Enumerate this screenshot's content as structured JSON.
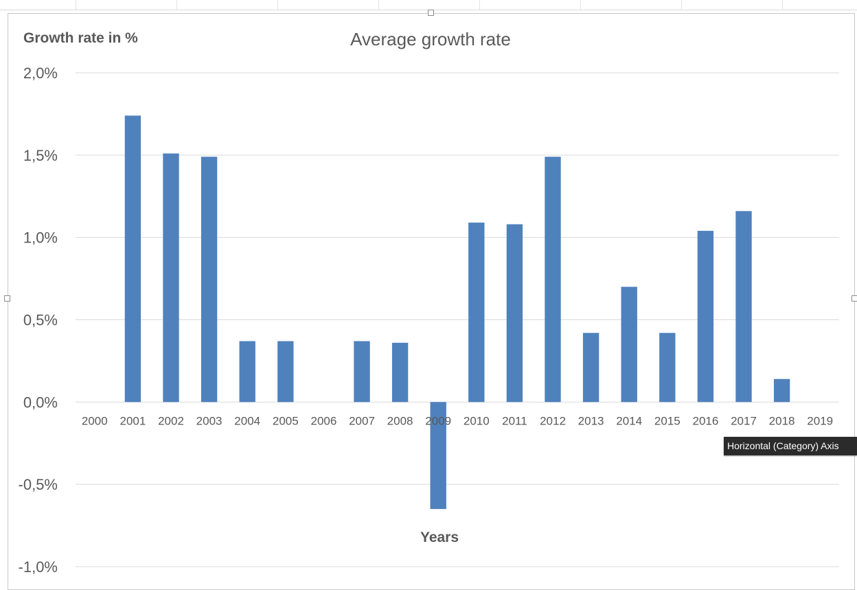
{
  "chart_data": {
    "type": "bar",
    "title": "Average growth rate",
    "ylabel": "Growth rate in %",
    "xlabel": "Years",
    "categories": [
      "2000",
      "2001",
      "2002",
      "2003",
      "2004",
      "2005",
      "2006",
      "2007",
      "2008",
      "2009",
      "2010",
      "2011",
      "2012",
      "2013",
      "2014",
      "2015",
      "2016",
      "2017",
      "2018",
      "2019"
    ],
    "values": [
      null,
      1.74,
      1.51,
      1.49,
      0.37,
      0.37,
      null,
      0.37,
      0.36,
      -0.65,
      1.09,
      1.08,
      1.49,
      0.42,
      0.7,
      0.42,
      1.04,
      1.16,
      0.14,
      null
    ],
    "ylim": [
      -1.0,
      2.0
    ],
    "yticks": [
      2.0,
      1.5,
      1.0,
      0.5,
      0.0,
      -0.5,
      -1.0
    ],
    "ytick_labels": [
      "2,0%",
      "1,5%",
      "1,0%",
      "0,5%",
      "0,0%",
      "-0,5%",
      "-1,0%"
    ],
    "grid": true,
    "legend": "none",
    "bar_color": "#4f81bd"
  },
  "tooltip": {
    "text": "Horizontal (Category) Axis"
  }
}
